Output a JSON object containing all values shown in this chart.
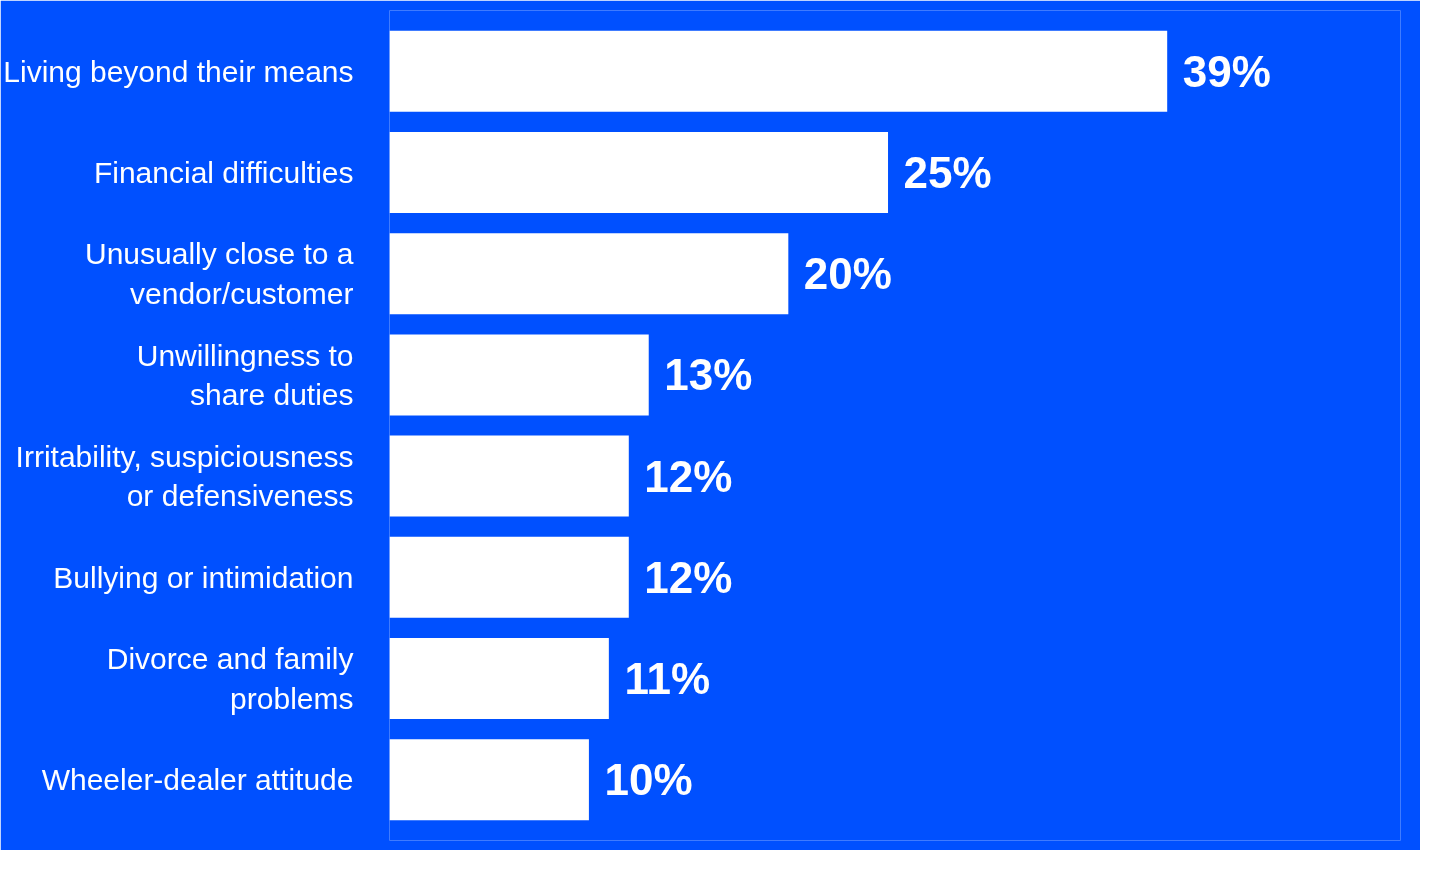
{
  "chart_data": {
    "type": "bar",
    "orientation": "horizontal",
    "categories": [
      "Living beyond their means",
      "Financial difficulties",
      "Unusually close to a\nvendor/customer",
      "Unwillingness to\nshare duties",
      "Irritability, suspiciousness\nor defensiveness",
      "Bullying or intimidation",
      "Divorce and family\nproblems",
      "Wheeler-dealer attitude"
    ],
    "values": [
      39,
      25,
      20,
      13,
      12,
      12,
      11,
      10
    ],
    "value_labels": [
      "39%",
      "25%",
      "20%",
      "13%",
      "12%",
      "12%",
      "11%",
      "10%"
    ],
    "color": "#ffffff",
    "grid": false,
    "tick_labels": "y"
  }
}
